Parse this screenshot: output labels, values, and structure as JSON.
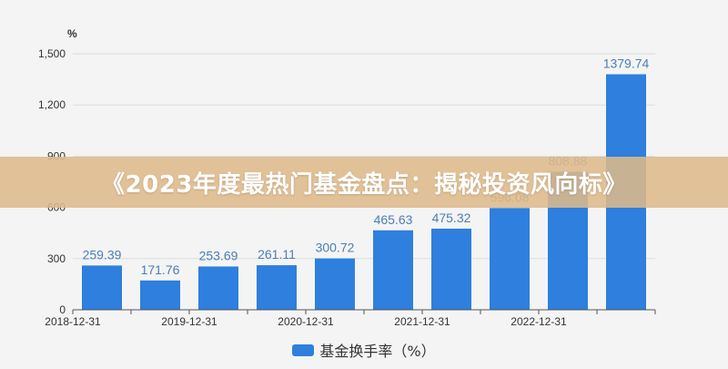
{
  "banner": {
    "title": "《2023年度最热门基金盘点：揭秘投资风向标》"
  },
  "colors": {
    "bar": "#2e7fde",
    "data_label": "#4a7fb5",
    "axis_text": "#333333",
    "grid": "#dddddd",
    "background": "#f4f4f4"
  },
  "chart_data": {
    "type": "bar",
    "yunit": "%",
    "ylim": [
      0,
      1500
    ],
    "yticks": [
      0,
      300,
      600,
      900,
      1200,
      1500
    ],
    "ytick_labels": [
      "0",
      "300",
      "600",
      "900",
      "1,200",
      "1,500"
    ],
    "xtick_labels": [
      "2018-12-31",
      "2019-12-31",
      "2020-12-31",
      "2021-12-31",
      "2022-12-31"
    ],
    "values": [
      259.39,
      171.76,
      253.69,
      261.11,
      300.72,
      465.63,
      475.32,
      596.08,
      808.88,
      1379.74
    ],
    "value_labels": [
      "259.39",
      "171.76",
      "253.69",
      "261.11",
      "300.72",
      "465.63",
      "475.32",
      "596.08",
      "808.88",
      "1379.74"
    ],
    "series": [
      {
        "name": "基金换手率（%）"
      }
    ],
    "grid": true,
    "legend_position": "bottom"
  }
}
